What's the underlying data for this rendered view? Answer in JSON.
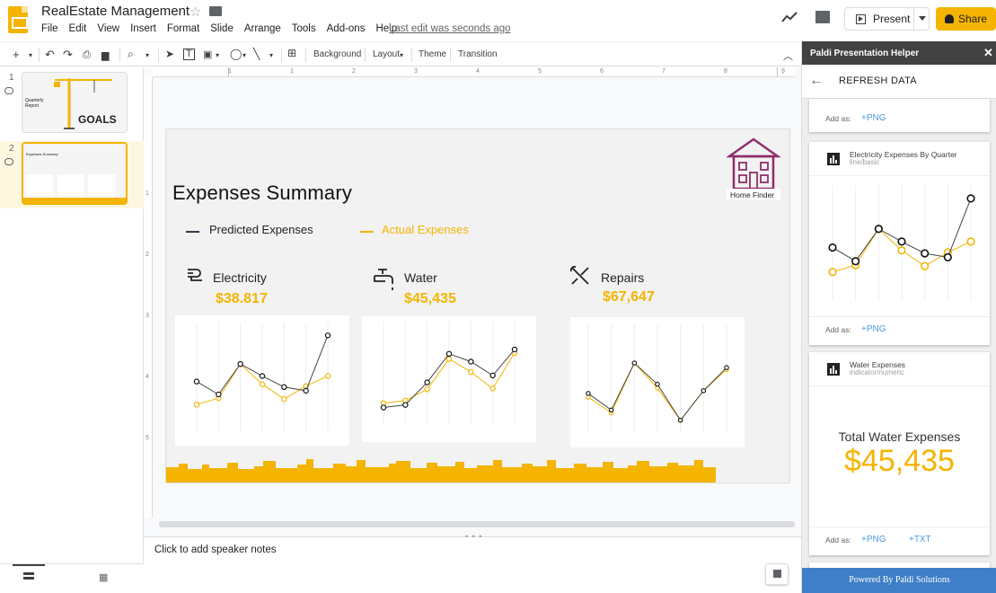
{
  "app": {
    "doc_title": "RealEstate Management",
    "menus": [
      "File",
      "Edit",
      "View",
      "Insert",
      "Format",
      "Slide",
      "Arrange",
      "Tools",
      "Add-ons",
      "Help"
    ],
    "last_edit": "Last edit was seconds ago",
    "present_label": "Present",
    "share_label": "Share",
    "accent": "#f4b400"
  },
  "toolbar": {
    "background_label": "Background",
    "layout_label": "Layout",
    "theme_label": "Theme",
    "transition_label": "Transition"
  },
  "filmstrip": {
    "slides": [
      {
        "number": "1",
        "title": "Quarterly Report",
        "goals_text": "GOALS"
      },
      {
        "number": "2",
        "title": "Expenses Summary",
        "selected": true
      }
    ]
  },
  "ruler": {
    "top_ticks": [
      "1",
      "1",
      "2",
      "3",
      "4",
      "5",
      "6",
      "7",
      "8",
      "9"
    ],
    "left_ticks": [
      "1",
      "2",
      "3",
      "4",
      "5"
    ]
  },
  "slide": {
    "title_a": "Expenses",
    "title_b": "Summary",
    "legend_predicted": "Predicted Expenses",
    "legend_actual": "Actual Expenses",
    "predicted_color": "#2f3b52",
    "actual_color": "#f4b400",
    "brand_label": "Home Finder",
    "sections": [
      {
        "name": "Electricity",
        "icon": "plug-icon",
        "value": "$38.817"
      },
      {
        "name": "Water",
        "icon": "faucet-icon",
        "value": "$45,435"
      },
      {
        "name": "Repairs",
        "icon": "tools-icon",
        "value": "$67,647"
      }
    ]
  },
  "chart_data": [
    {
      "type": "line",
      "name": "electricity",
      "series": [
        {
          "name": "Predicted Expenses",
          "values": [
            5,
            3.6,
            6.9,
            5.6,
            4.4,
            4.0,
            10.0
          ]
        },
        {
          "name": "Actual Expenses",
          "values": [
            2.5,
            3.2,
            6.9,
            4.7,
            3.1,
            4.5,
            5.6
          ]
        }
      ]
    },
    {
      "type": "line",
      "name": "water",
      "series": [
        {
          "name": "Predicted Expenses",
          "values": [
            1.5,
            1.8,
            4.4,
            7.7,
            6.8,
            5.2,
            8.2
          ]
        },
        {
          "name": "Actual Expenses",
          "values": [
            2.0,
            2.3,
            3.6,
            7.1,
            5.6,
            3.7,
            7.8
          ]
        }
      ]
    },
    {
      "type": "line",
      "name": "repairs",
      "series": [
        {
          "name": "Predicted Expenses",
          "values": [
            3.9,
            2.1,
            7.2,
            4.9,
            1.0,
            4.2,
            6.7
          ]
        },
        {
          "name": "Actual Expenses",
          "values": [
            3.5,
            1.8,
            7.2,
            4.5,
            1.0,
            4.2,
            6.5
          ]
        }
      ]
    }
  ],
  "notes": {
    "placeholder": "Click to add speaker notes"
  },
  "panel": {
    "title": "Paldi Presentation Helper",
    "refresh": "REFRESH DATA",
    "add_as": "Add as:",
    "png_label": "+PNG",
    "txt_label": "+TXT",
    "cards": [
      {
        "title": "Electricity Expenses By Quarter",
        "subtitle": "line/basic"
      },
      {
        "title": "Water Expenses",
        "subtitle": "indicator/numeric",
        "indicator_title": "Total Water Expenses",
        "indicator_value": "$45,435"
      }
    ],
    "footer": "Powered By Paldi Solutions"
  }
}
